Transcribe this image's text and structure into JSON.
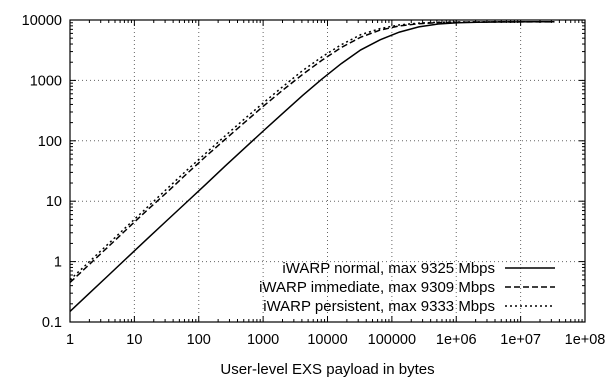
{
  "chart_data": {
    "type": "line",
    "title": "",
    "xlabel": "User-level EXS payload in bytes",
    "ylabel": "",
    "x_scale": "log",
    "y_scale": "log",
    "xlim": [
      1,
      100000000
    ],
    "ylim": [
      0.1,
      10000
    ],
    "grid": true,
    "legend_position": "bottom-right",
    "x_ticks": [
      1,
      10,
      100,
      1000,
      10000,
      100000,
      1000000,
      10000000,
      100000000
    ],
    "x_tick_labels": [
      "1",
      "10",
      "100",
      "1000",
      "10000",
      "100000",
      "1e+06",
      "1e+07",
      "1e+08"
    ],
    "y_ticks": [
      0.1,
      1,
      10,
      100,
      1000,
      10000
    ],
    "y_tick_labels": [
      "0.1",
      "1",
      "10",
      "100",
      "1000",
      "10000"
    ],
    "series": [
      {
        "name": "iWARP normal, max 9325 Mbps",
        "style": "solid",
        "x": [
          1,
          2,
          4,
          8,
          16,
          32,
          64,
          128,
          256,
          512,
          1024,
          2048,
          4096,
          8192,
          16384,
          32768,
          65536,
          131072,
          262144,
          524288,
          1048576,
          2097152,
          4194304,
          8388608,
          16777216,
          33554432
        ],
        "y": [
          0.15,
          0.3,
          0.6,
          1.2,
          2.4,
          4.8,
          9.5,
          19,
          38,
          75,
          148,
          290,
          560,
          1050,
          1900,
          3200,
          4700,
          6300,
          7700,
          8600,
          9000,
          9200,
          9280,
          9310,
          9320,
          9325
        ]
      },
      {
        "name": "iWARP immediate, max 9309 Mbps",
        "style": "dashed",
        "x": [
          1,
          2,
          4,
          8,
          16,
          32,
          64,
          128,
          256,
          512,
          1024,
          2048,
          4096,
          8192,
          16384,
          32768,
          65536,
          131072,
          262144,
          524288,
          1048576,
          2097152,
          4194304,
          8388608,
          16777216,
          33554432
        ],
        "y": [
          0.45,
          0.9,
          1.8,
          3.6,
          7.2,
          14,
          28,
          55,
          105,
          200,
          380,
          700,
          1250,
          2150,
          3500,
          5200,
          6800,
          8000,
          8700,
          9050,
          9200,
          9260,
          9290,
          9300,
          9305,
          9309
        ]
      },
      {
        "name": "iWARP persistent, max 9333 Mbps",
        "style": "dotted",
        "x": [
          1,
          2,
          4,
          8,
          16,
          32,
          64,
          128,
          256,
          512,
          1024,
          2048,
          4096,
          8192,
          16384,
          32768,
          65536,
          131072,
          262144,
          524288,
          1048576,
          2097152,
          4194304,
          8388608,
          16777216,
          33554432
        ],
        "y": [
          0.5,
          1.0,
          2.0,
          4.0,
          8.0,
          16,
          32,
          62,
          120,
          230,
          430,
          800,
          1450,
          2450,
          3900,
          5700,
          7200,
          8300,
          8900,
          9150,
          9260,
          9300,
          9320,
          9328,
          9331,
          9333
        ]
      }
    ]
  }
}
